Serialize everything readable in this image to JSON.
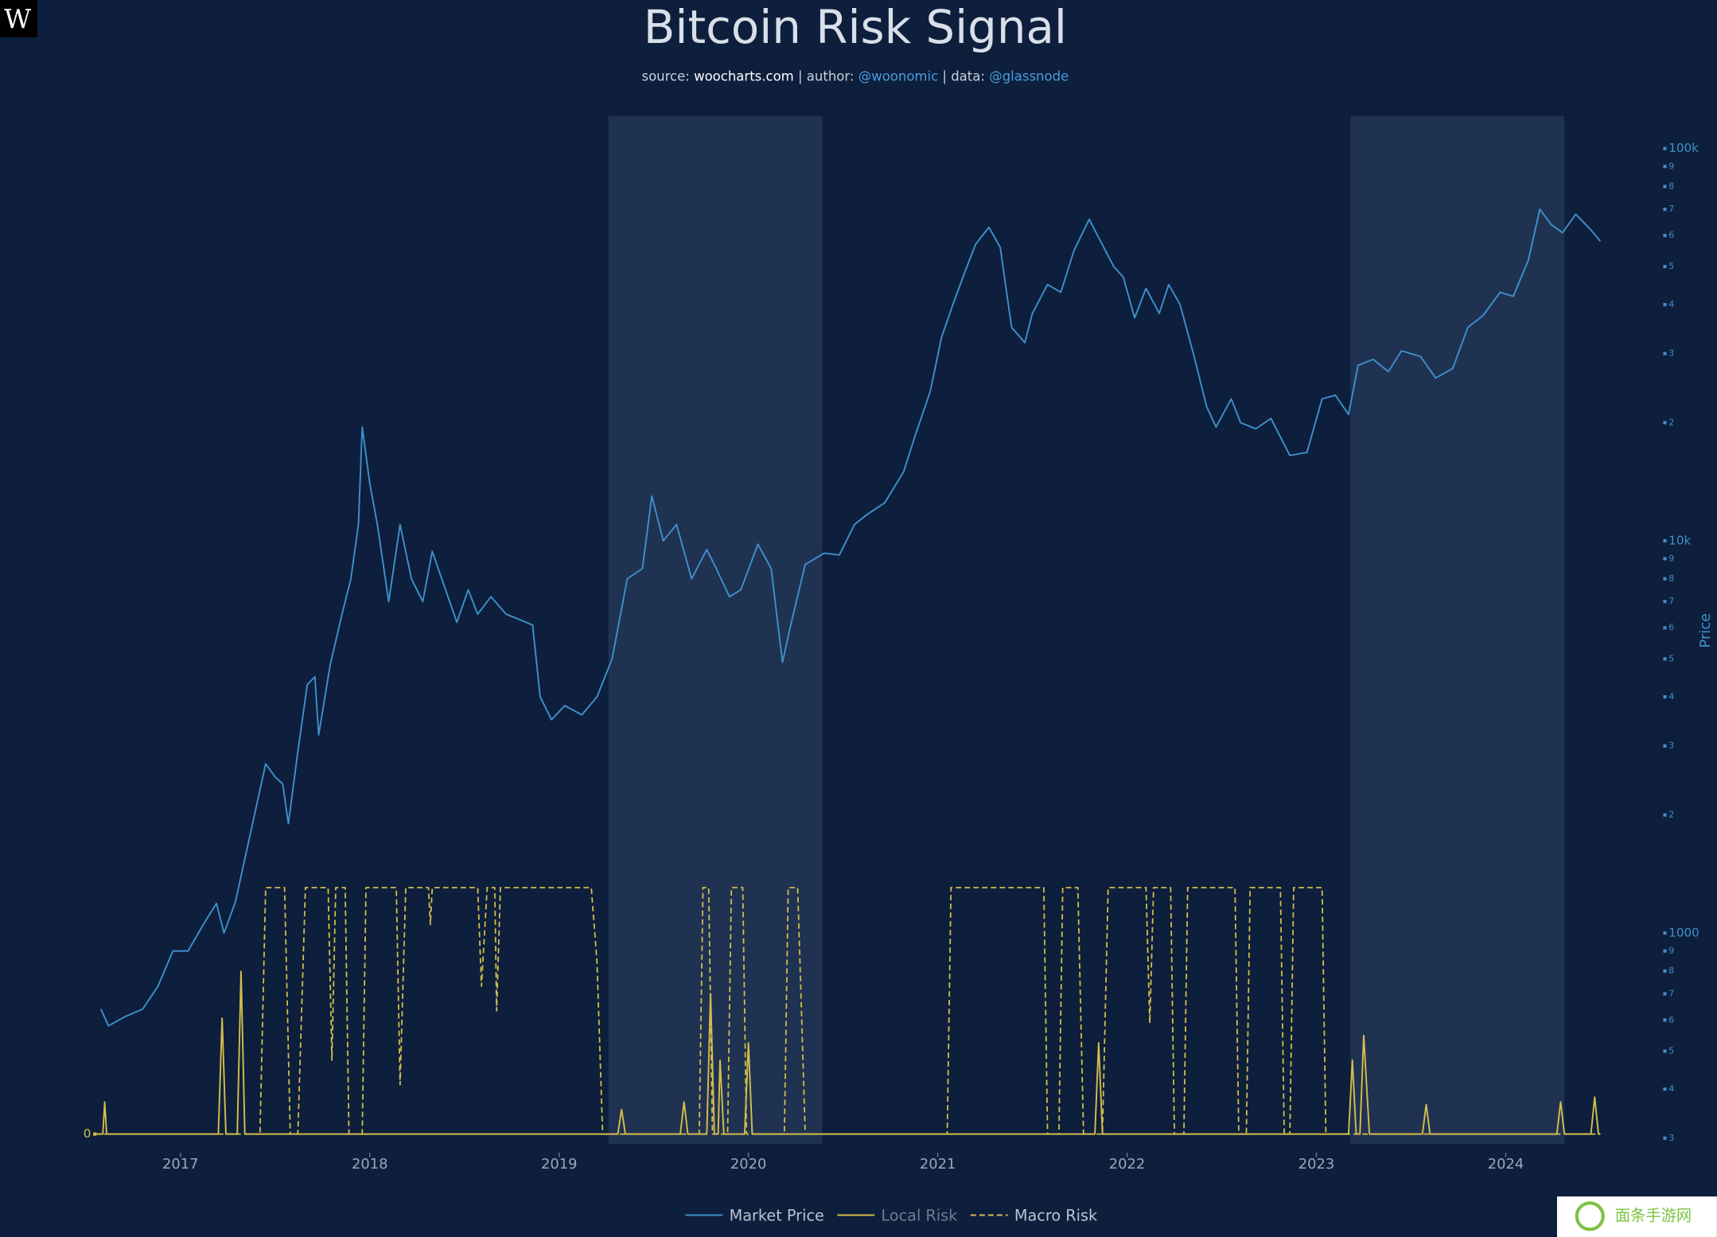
{
  "logo": "W",
  "watermark": "面条手游网",
  "chart_data": {
    "type": "line",
    "title": "Bitcoin Risk Signal",
    "subtitle": [
      "source: ",
      "woocharts.com",
      " | author: ",
      "@woonomic",
      " | data: ",
      "@glassnode"
    ],
    "y_label": "Price",
    "xlim": [
      2016.51,
      2024.78
    ],
    "xticks": [
      2017,
      2018,
      2019,
      2020,
      2021,
      2022,
      2023,
      2024
    ],
    "ylim": [
      290,
      121000
    ],
    "log_y": true,
    "yticks": [
      {
        "value": 100000,
        "label": "100k"
      },
      {
        "value": 90000,
        "label": "9"
      },
      {
        "value": 80000,
        "label": "8"
      },
      {
        "value": 70000,
        "label": "7"
      },
      {
        "value": 60000,
        "label": "6"
      },
      {
        "value": 50000,
        "label": "5"
      },
      {
        "value": 40000,
        "label": "4"
      },
      {
        "value": 30000,
        "label": "3"
      },
      {
        "value": 20000,
        "label": "2"
      },
      {
        "value": 10000,
        "label": "10k"
      },
      {
        "value": 9000,
        "label": "9"
      },
      {
        "value": 8000,
        "label": "8"
      },
      {
        "value": 7000,
        "label": "7"
      },
      {
        "value": 6000,
        "label": "6"
      },
      {
        "value": 5000,
        "label": "5"
      },
      {
        "value": 4000,
        "label": "4"
      },
      {
        "value": 3000,
        "label": "3"
      },
      {
        "value": 2000,
        "label": "2"
      },
      1000,
      {
        "value": 900,
        "label": "9"
      },
      {
        "value": 800,
        "label": "8"
      },
      {
        "value": 700,
        "label": "7"
      },
      {
        "value": 600,
        "label": "6"
      },
      {
        "value": 500,
        "label": "5"
      },
      {
        "value": 400,
        "label": "4"
      },
      {
        "value": 300,
        "label": "3"
      }
    ],
    "y2lim": [
      -0.04,
      4.13
    ],
    "y2ticks": [
      0
    ],
    "shaded_ranges": [
      [
        2019.26,
        2020.39
      ],
      [
        2023.18,
        2024.31
      ]
    ],
    "series": [
      {
        "name": "Market Price",
        "color": "#3f8fcb",
        "dash": false,
        "axis": "y",
        "x": [
          2016.58,
          2016.62,
          2016.7,
          2016.8,
          2016.88,
          2016.96,
          2017.04,
          2017.12,
          2017.19,
          2017.23,
          2017.29,
          2017.37,
          2017.45,
          2017.5,
          2017.54,
          2017.57,
          2017.62,
          2017.67,
          2017.71,
          2017.73,
          2017.79,
          2017.85,
          2017.9,
          2017.94,
          2017.96,
          2018.0,
          2018.04,
          2018.1,
          2018.16,
          2018.22,
          2018.28,
          2018.33,
          2018.38,
          2018.46,
          2018.52,
          2018.57,
          2018.64,
          2018.72,
          2018.79,
          2018.86,
          2018.9,
          2018.96,
          2019.03,
          2019.12,
          2019.2,
          2019.28,
          2019.36,
          2019.44,
          2019.49,
          2019.55,
          2019.62,
          2019.7,
          2019.78,
          2019.83,
          2019.9,
          2019.96,
          2020.05,
          2020.12,
          2020.18,
          2020.22,
          2020.3,
          2020.4,
          2020.48,
          2020.56,
          2020.63,
          2020.72,
          2020.82,
          2020.88,
          2020.96,
          2021.02,
          2021.08,
          2021.14,
          2021.2,
          2021.27,
          2021.33,
          2021.39,
          2021.46,
          2021.5,
          2021.58,
          2021.65,
          2021.72,
          2021.8,
          2021.86,
          2021.93,
          2021.98,
          2022.04,
          2022.1,
          2022.17,
          2022.22,
          2022.28,
          2022.35,
          2022.42,
          2022.47,
          2022.55,
          2022.6,
          2022.68,
          2022.76,
          2022.86,
          2022.95,
          2023.03,
          2023.1,
          2023.17,
          2023.22,
          2023.3,
          2023.38,
          2023.45,
          2023.55,
          2023.63,
          2023.72,
          2023.8,
          2023.88,
          2023.97,
          2024.04,
          2024.12,
          2024.18,
          2024.24,
          2024.3,
          2024.37,
          2024.45,
          2024.5
        ],
        "values": [
          640,
          580,
          610,
          640,
          730,
          900,
          900,
          1050,
          1190,
          1000,
          1200,
          1800,
          2700,
          2500,
          2400,
          1900,
          2900,
          4300,
          4500,
          3200,
          4800,
          6400,
          8000,
          11000,
          19500,
          14000,
          11000,
          7000,
          11000,
          8000,
          7000,
          9400,
          8000,
          6200,
          7500,
          6500,
          7200,
          6500,
          6300,
          6100,
          4000,
          3500,
          3800,
          3600,
          4000,
          5000,
          8000,
          8500,
          13000,
          10000,
          11000,
          8000,
          9500,
          8500,
          7200,
          7500,
          9800,
          8500,
          4900,
          6000,
          8700,
          9300,
          9200,
          11000,
          11700,
          12500,
          15000,
          18500,
          24000,
          33000,
          40000,
          48000,
          57000,
          63000,
          56000,
          35000,
          32000,
          38000,
          45000,
          43000,
          55000,
          66000,
          58000,
          50000,
          47000,
          37000,
          44000,
          38000,
          45000,
          40000,
          30000,
          22000,
          19500,
          23000,
          20000,
          19300,
          20500,
          16500,
          16800,
          23000,
          23500,
          21000,
          28000,
          29000,
          27000,
          30500,
          29500,
          26000,
          27500,
          35000,
          37500,
          43000,
          42000,
          52000,
          70000,
          64000,
          61000,
          68000,
          62000,
          58000
        ]
      },
      {
        "name": "Local Risk",
        "color": "#d4bd4c",
        "dash": false,
        "axis": "y2",
        "x": [
          2016.55,
          2016.59,
          2016.6,
          2016.61,
          2017.2,
          2017.22,
          2017.24,
          2017.3,
          2017.32,
          2017.34,
          2019.31,
          2019.33,
          2019.35,
          2019.64,
          2019.66,
          2019.68,
          2019.78,
          2019.8,
          2019.82,
          2019.84,
          2019.85,
          2019.87,
          2019.98,
          2020.0,
          2020.02,
          2021.83,
          2021.85,
          2021.87,
          2023.17,
          2023.19,
          2023.21,
          2023.23,
          2023.25,
          2023.28,
          2023.56,
          2023.58,
          2023.6,
          2024.27,
          2024.29,
          2024.31,
          2024.45,
          2024.47,
          2024.49,
          2024.5
        ],
        "values": [
          0,
          0,
          0.13,
          0,
          0,
          0.47,
          0,
          0,
          0.66,
          0,
          0,
          0.1,
          0,
          0,
          0.13,
          0,
          0,
          0.57,
          0,
          0,
          0.3,
          0,
          0,
          0.37,
          0,
          0,
          0.37,
          0,
          0,
          0.3,
          0,
          0,
          0.4,
          0,
          0,
          0.12,
          0,
          0,
          0.13,
          0,
          0,
          0.15,
          0,
          0
        ]
      },
      {
        "name": "Macro Risk",
        "color": "#d4bd4c",
        "dash": true,
        "axis": "y2",
        "x": [
          2016.55,
          2017.42,
          2017.45,
          2017.55,
          2017.58,
          2017.62,
          2017.66,
          2017.78,
          2017.8,
          2017.82,
          2017.87,
          2017.89,
          2017.96,
          2017.98,
          2018.14,
          2018.16,
          2018.19,
          2018.31,
          2018.32,
          2018.33,
          2018.57,
          2018.59,
          2018.62,
          2018.66,
          2018.67,
          2018.69,
          2019.17,
          2019.2,
          2019.23,
          2019.74,
          2019.76,
          2019.79,
          2019.81,
          2019.89,
          2019.91,
          2019.97,
          2019.99,
          2020.19,
          2020.21,
          2020.26,
          2020.3,
          2021.05,
          2021.07,
          2021.56,
          2021.58,
          2021.64,
          2021.66,
          2021.74,
          2021.77,
          2021.87,
          2021.9,
          2022.1,
          2022.12,
          2022.14,
          2022.23,
          2022.25,
          2022.3,
          2022.32,
          2022.57,
          2022.59,
          2022.63,
          2022.65,
          2022.81,
          2022.83,
          2022.86,
          2022.88,
          2023.03,
          2023.05,
          2024.5
        ],
        "values": [
          0,
          0,
          1,
          1,
          0,
          0,
          1,
          1,
          0.3,
          1,
          1,
          0,
          0,
          1,
          1,
          0.2,
          1,
          1,
          0.85,
          1,
          1,
          0.6,
          1,
          1,
          0.5,
          1,
          1,
          0.7,
          0,
          0,
          1,
          1,
          0,
          0,
          1,
          1,
          0,
          0,
          1,
          1,
          0,
          0,
          1,
          1,
          0,
          0,
          1,
          1,
          0,
          0,
          1,
          1,
          0.45,
          1,
          1,
          0,
          0,
          1,
          1,
          0,
          0,
          1,
          1,
          0,
          0,
          1,
          1,
          0,
          0
        ]
      }
    ]
  }
}
